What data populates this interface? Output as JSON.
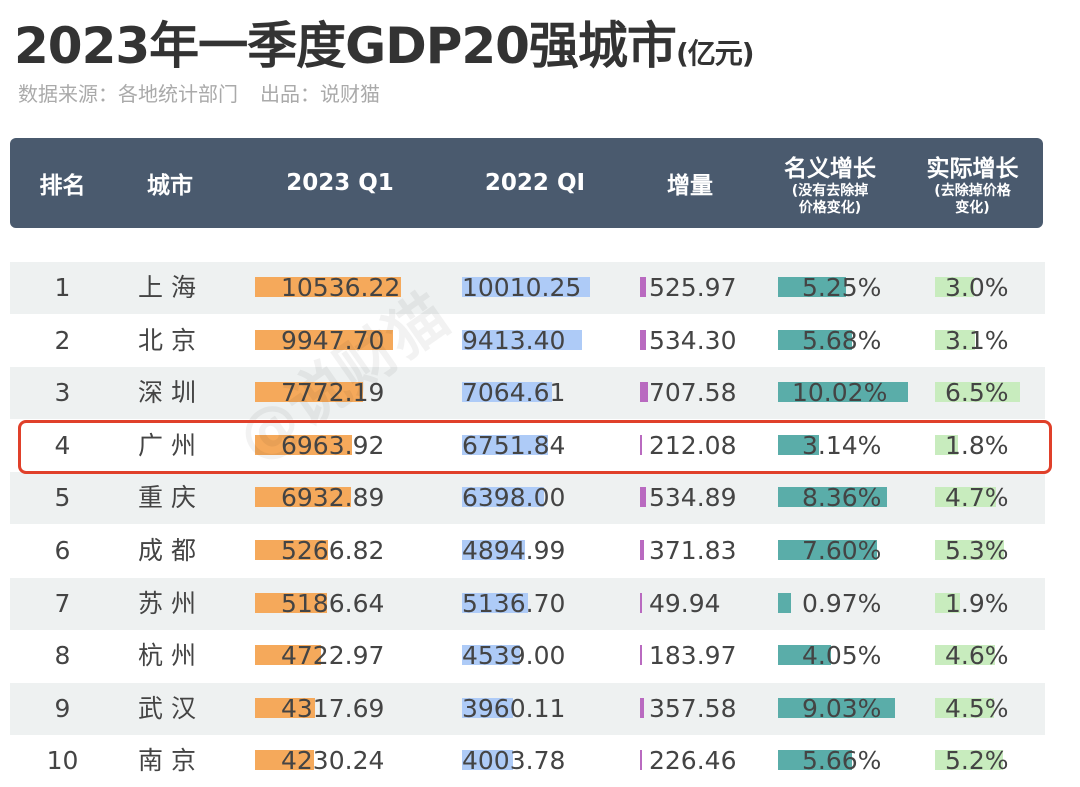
{
  "title": "2023年一季度GDP20强城市",
  "title_unit": "(亿元)",
  "source": "数据来源：各地统计部门",
  "producer": "出品：说财猫",
  "watermark": "@说财猫",
  "colors": {
    "header_bg": "#4a5a6e",
    "q1_2023": "#f5a95b",
    "q1_2022": "#aecbf7",
    "increment": "#b96ac0",
    "nominal": "#5aada9",
    "real": "#c8ecbe",
    "highlight": "#e0402a"
  },
  "chart_data": {
    "type": "table",
    "headers": {
      "rank": "排名",
      "city": "城市",
      "q1_2023": "2023 Q1",
      "q1_2022": "2022 QI",
      "increment": "增量",
      "nominal": "名义增长",
      "nominal_note": "(没有去除掉价格变化)",
      "real": "实际增长",
      "real_note": "(去除掉价格变化)"
    },
    "highlighted_rank": 4,
    "rows": [
      {
        "rank": "1",
        "city": "上 海",
        "q1_2023": 10536.22,
        "q1_2022": 10010.25,
        "increment": 525.97,
        "nominal": 5.25,
        "real": 3.0
      },
      {
        "rank": "2",
        "city": "北 京",
        "q1_2023": 9947.7,
        "q1_2022": 9413.4,
        "increment": 534.3,
        "nominal": 5.68,
        "real": 3.1
      },
      {
        "rank": "3",
        "city": "深 圳",
        "q1_2023": 7772.19,
        "q1_2022": 7064.61,
        "increment": 707.58,
        "nominal": 10.02,
        "real": 6.5
      },
      {
        "rank": "4",
        "city": "广 州",
        "q1_2023": 6963.92,
        "q1_2022": 6751.84,
        "increment": 212.08,
        "nominal": 3.14,
        "real": 1.8
      },
      {
        "rank": "5",
        "city": "重 庆",
        "q1_2023": 6932.89,
        "q1_2022": 6398.0,
        "increment": 534.89,
        "nominal": 8.36,
        "real": 4.7
      },
      {
        "rank": "6",
        "city": "成 都",
        "q1_2023": 5266.82,
        "q1_2022": 4894.99,
        "increment": 371.83,
        "nominal": 7.6,
        "real": 5.3
      },
      {
        "rank": "7",
        "city": "苏 州",
        "q1_2023": 5186.64,
        "q1_2022": 5136.7,
        "increment": 49.94,
        "nominal": 0.97,
        "real": 1.9
      },
      {
        "rank": "8",
        "city": "杭 州",
        "q1_2023": 4722.97,
        "q1_2022": 4539.0,
        "increment": 183.97,
        "nominal": 4.05,
        "real": 4.6
      },
      {
        "rank": "9",
        "city": "武 汉",
        "q1_2023": 4317.69,
        "q1_2022": 3960.11,
        "increment": 357.58,
        "nominal": 9.03,
        "real": 4.5
      },
      {
        "rank": "10",
        "city": "南 京",
        "q1_2023": 4230.24,
        "q1_2022": 4003.78,
        "increment": 226.46,
        "nominal": 5.66,
        "real": 5.2
      }
    ]
  }
}
